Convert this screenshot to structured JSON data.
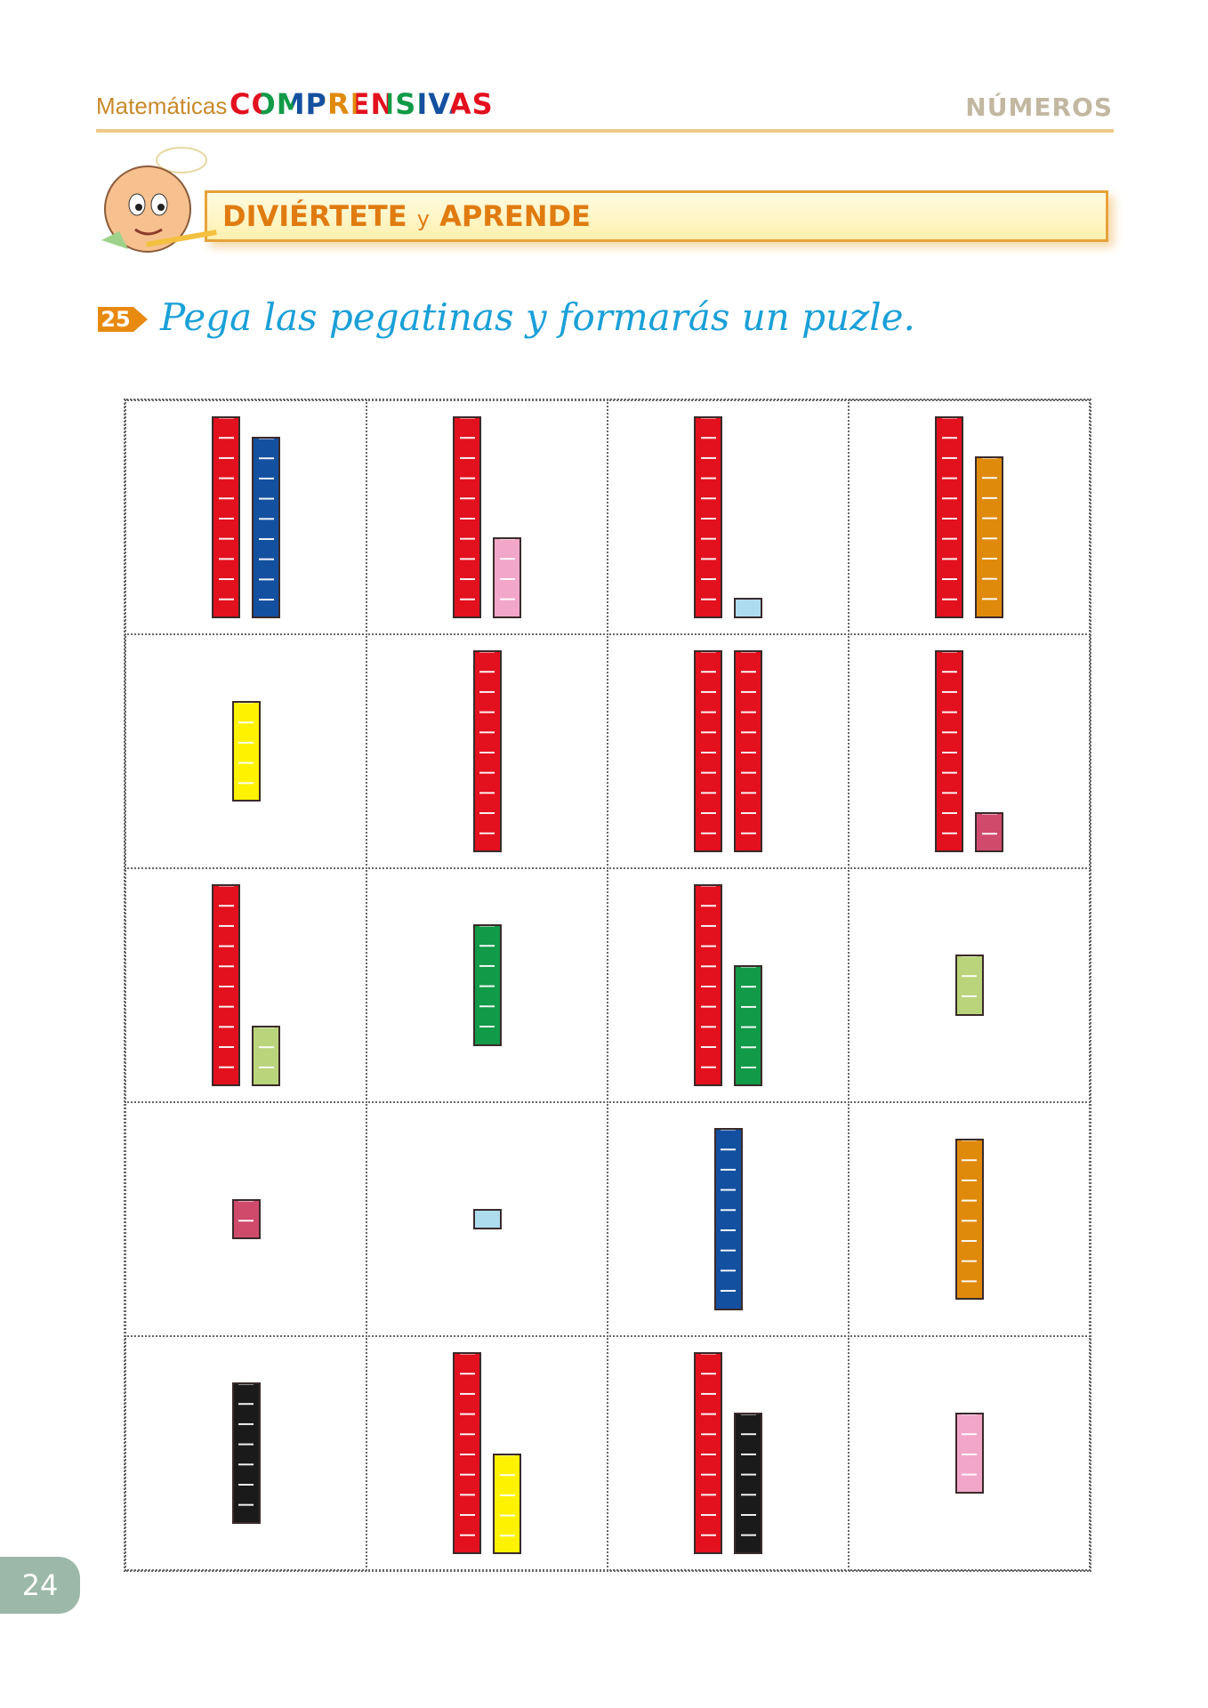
{
  "header": {
    "brand_prefix": "Matemáticas",
    "brand": "COMPRENSIVAS",
    "section": "NÚMEROS"
  },
  "banner": {
    "left": "DIVIÉRTETE",
    "joiner": "y",
    "right": "APRENDE"
  },
  "exercise": {
    "number": "25",
    "instruction": "Pega las pegatinas y formarás un puzle."
  },
  "puzzle": {
    "cells": [
      {
        "rods": [
          {
            "color": "#e3101e",
            "units": 10
          },
          {
            "color": "#1450a0",
            "units": 9
          }
        ]
      },
      {
        "rods": [
          {
            "color": "#e3101e",
            "units": 10
          },
          {
            "color": "#f2a6c8",
            "units": 4
          }
        ]
      },
      {
        "rods": [
          {
            "color": "#e3101e",
            "units": 10
          },
          {
            "color": "#aedcef",
            "units": 1
          }
        ]
      },
      {
        "rods": [
          {
            "color": "#e3101e",
            "units": 10
          },
          {
            "color": "#e08a0c",
            "units": 8
          }
        ]
      },
      {
        "rods": [
          {
            "color": "#fff200",
            "units": 5
          }
        ]
      },
      {
        "rods": [
          {
            "color": "#e3101e",
            "units": 10
          }
        ]
      },
      {
        "rods": [
          {
            "color": "#e3101e",
            "units": 10
          },
          {
            "color": "#e3101e",
            "units": 10
          }
        ]
      },
      {
        "rods": [
          {
            "color": "#e3101e",
            "units": 10
          },
          {
            "color": "#d04a6c",
            "units": 2
          }
        ]
      },
      {
        "rods": [
          {
            "color": "#e3101e",
            "units": 10
          },
          {
            "color": "#b9d47a",
            "units": 3
          }
        ]
      },
      {
        "rods": [
          {
            "color": "#119a47",
            "units": 6
          }
        ]
      },
      {
        "rods": [
          {
            "color": "#e3101e",
            "units": 10
          },
          {
            "color": "#119a47",
            "units": 6
          }
        ]
      },
      {
        "rods": [
          {
            "color": "#b9d47a",
            "units": 3
          }
        ]
      },
      {
        "rods": [
          {
            "color": "#d04a6c",
            "units": 2
          }
        ]
      },
      {
        "rods": [
          {
            "color": "#aedcef",
            "units": 1
          }
        ]
      },
      {
        "rods": [
          {
            "color": "#1450a0",
            "units": 9
          }
        ]
      },
      {
        "rods": [
          {
            "color": "#e08a0c",
            "units": 8
          }
        ]
      },
      {
        "rods": [
          {
            "color": "#1a1a1a",
            "units": 7
          }
        ]
      },
      {
        "rods": [
          {
            "color": "#e3101e",
            "units": 10
          },
          {
            "color": "#fff200",
            "units": 5
          }
        ]
      },
      {
        "rods": [
          {
            "color": "#e3101e",
            "units": 10
          },
          {
            "color": "#1a1a1a",
            "units": 7
          }
        ]
      },
      {
        "rods": [
          {
            "color": "#f2a6c8",
            "units": 4
          }
        ]
      }
    ]
  },
  "page_number": "24"
}
